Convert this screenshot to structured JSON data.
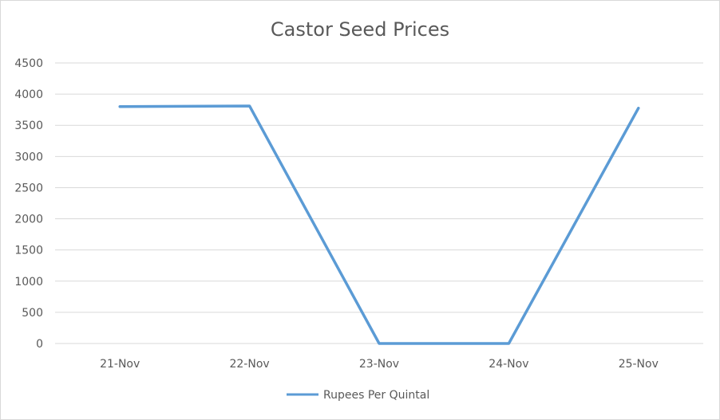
{
  "chart_data": {
    "type": "line",
    "title": "Castor Seed Prices",
    "xlabel": "",
    "ylabel": "",
    "categories": [
      "21-Nov",
      "22-Nov",
      "23-Nov",
      "24-Nov",
      "25-Nov"
    ],
    "series": [
      {
        "name": "Rupees Per Quintal",
        "values": [
          3800,
          3810,
          0,
          0,
          3775
        ],
        "color": "#5b9bd5"
      }
    ],
    "ylim": [
      0,
      4500
    ],
    "yticks": [
      "0",
      "500",
      "1000",
      "1500",
      "2000",
      "2500",
      "3000",
      "3500",
      "4000",
      "4500"
    ],
    "grid": true,
    "legend_position": "bottom"
  }
}
